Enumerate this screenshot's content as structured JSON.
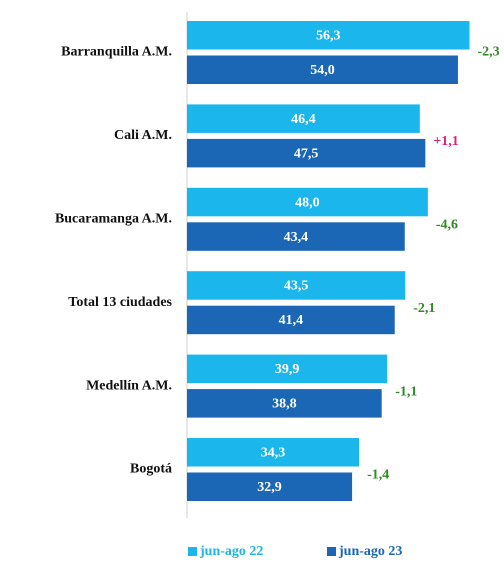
{
  "chart_data": {
    "type": "barh",
    "categories": [
      "Barranquilla A.M.",
      "Cali A.M.",
      "Bucaramanga A.M.",
      "Total 13 ciudades",
      "Medellín A.M.",
      "Bogotá"
    ],
    "series": [
      {
        "name": "jun-ago 22",
        "color": "#1ab6ec",
        "values": [
          56.3,
          46.4,
          48.0,
          43.5,
          39.9,
          34.3
        ],
        "value_labels": [
          "56,3",
          "46,4",
          "48,0",
          "43,5",
          "39,9",
          "34,3"
        ]
      },
      {
        "name": "jun-ago 23",
        "color": "#1b67b5",
        "values": [
          54.0,
          47.5,
          43.4,
          41.4,
          38.8,
          32.9
        ],
        "value_labels": [
          "54,0",
          "47,5",
          "43,4",
          "41,4",
          "38,8",
          "32,9"
        ]
      }
    ],
    "differences": [
      -2.3,
      1.1,
      -4.6,
      -2.1,
      -1.1,
      -1.4
    ],
    "difference_labels": [
      "-2,3",
      "+1,1",
      "-4,6",
      "-2,1",
      "-1,1",
      "-1,4"
    ],
    "difference_colors": {
      "negative": "#2e8b22",
      "positive": "#e0207a"
    },
    "xlim": [
      0,
      57
    ],
    "legend": "bottom"
  }
}
